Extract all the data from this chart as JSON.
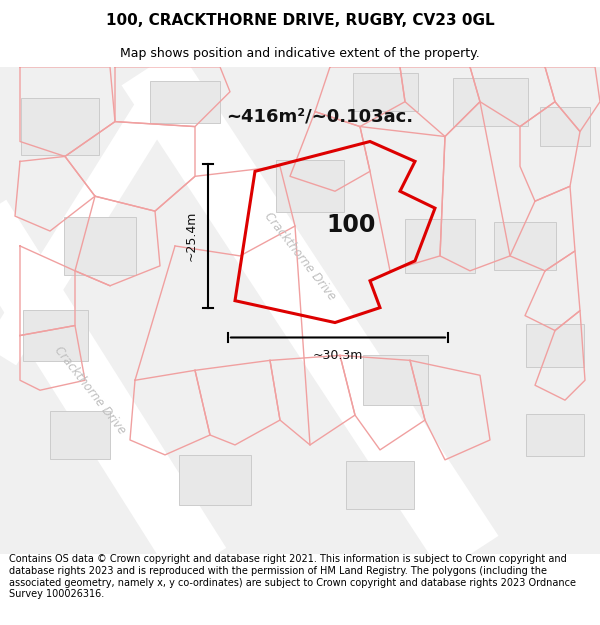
{
  "title": "100, CRACKTHORNE DRIVE, RUGBY, CV23 0GL",
  "subtitle": "Map shows position and indicative extent of the property.",
  "footer": "Contains OS data © Crown copyright and database right 2021. This information is subject to Crown copyright and database rights 2023 and is reproduced with the permission of HM Land Registry. The polygons (including the associated geometry, namely x, y co-ordinates) are subject to Crown copyright and database rights 2023 Ordnance Survey 100026316.",
  "area_label": "~416m²/~0.103ac.",
  "property_number": "100",
  "width_label": "~30.3m",
  "height_label": "~25.4m",
  "bg_color": "#f5f5f5",
  "white": "#ffffff",
  "building_fc": "#e8e8e8",
  "building_ec": "#cccccc",
  "pink": "#f0a0a0",
  "red": "#dd0000",
  "road_label_color": "#c0c0c0",
  "title_fontsize": 11,
  "subtitle_fontsize": 9,
  "footer_fontsize": 7.0,
  "map_xlim": [
    0,
    600
  ],
  "map_ylim": [
    0,
    490
  ]
}
